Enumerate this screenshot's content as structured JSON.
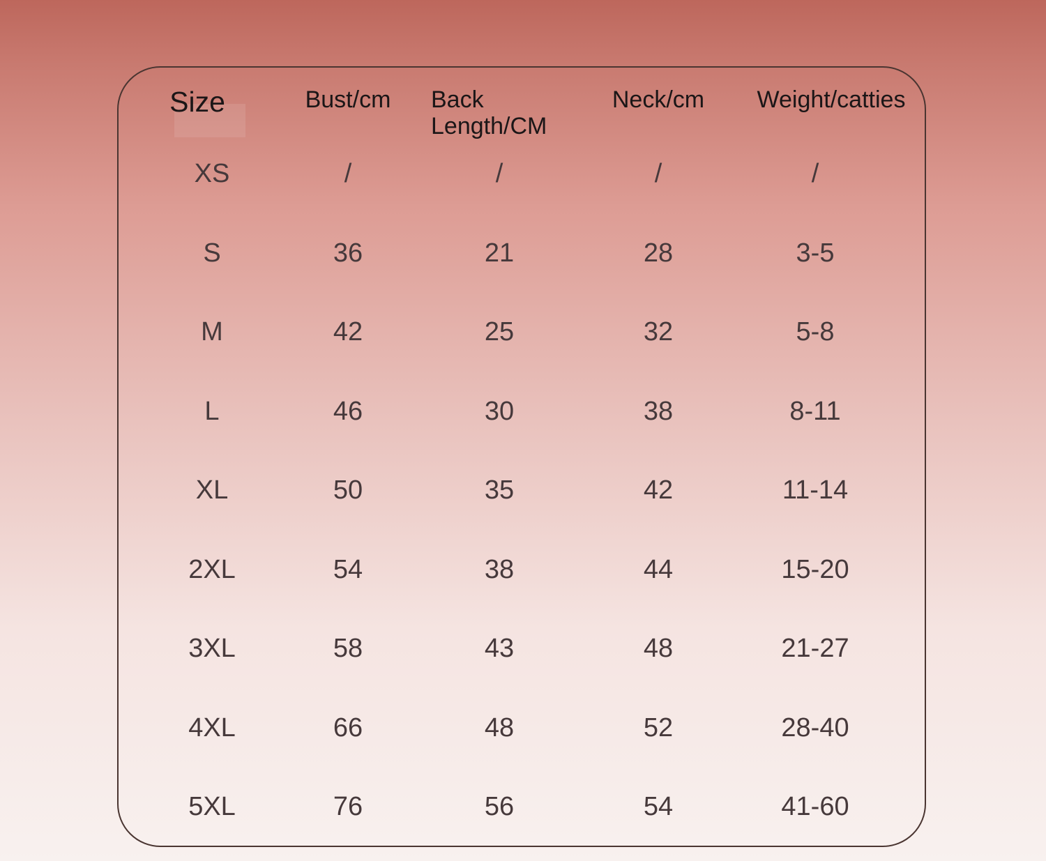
{
  "chart_data": {
    "type": "table",
    "columns": [
      "Size",
      "Bust/cm",
      "Back Length/CM",
      "Neck/cm",
      "Weight/catties"
    ],
    "rows": [
      [
        "XS",
        "/",
        "/",
        "/",
        "/"
      ],
      [
        "S",
        "36",
        "21",
        "28",
        "3-5"
      ],
      [
        "M",
        "42",
        "25",
        "32",
        "5-8"
      ],
      [
        "L",
        "46",
        "30",
        "38",
        "8-11"
      ],
      [
        "XL",
        "50",
        "35",
        "42",
        "11-14"
      ],
      [
        "2XL",
        "54",
        "38",
        "44",
        "15-20"
      ],
      [
        "3XL",
        "58",
        "43",
        "48",
        "21-27"
      ],
      [
        "4XL",
        "66",
        "48",
        "52",
        "28-40"
      ],
      [
        "5XL",
        "76",
        "56",
        "54",
        "41-60"
      ]
    ]
  },
  "colors": {
    "background_top": "#bd675c",
    "background_bottom": "#f8f1ef",
    "card_border": "#4a3531",
    "header_text": "#1b1617",
    "value_text": "#46393b"
  }
}
